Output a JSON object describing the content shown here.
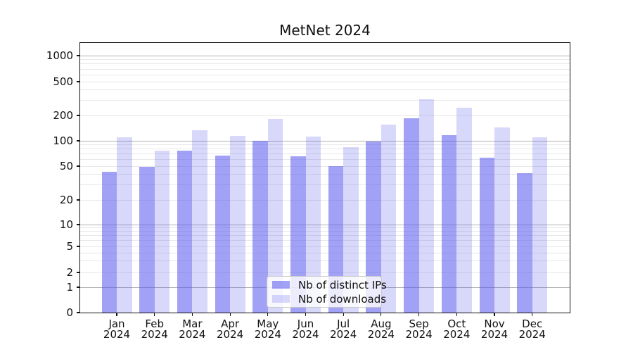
{
  "chart_data": {
    "type": "bar",
    "title": "MetNet 2024",
    "categories": [
      "Jan 2024",
      "Feb 2024",
      "Mar 2024",
      "Apr 2024",
      "May 2024",
      "Jun 2024",
      "Jul 2024",
      "Aug 2024",
      "Sep 2024",
      "Oct 2024",
      "Nov 2024",
      "Dec 2024"
    ],
    "series": [
      {
        "name": "Nb of distinct IPs",
        "values": [
          43,
          49,
          77,
          67,
          100,
          65,
          50,
          99,
          184,
          117,
          63,
          41
        ],
        "color": "rgba(88,88,238,0.56)",
        "approx_hex": "#a8a8f4"
      },
      {
        "name": "Nb of downloads",
        "values": [
          110,
          76,
          134,
          114,
          183,
          112,
          84,
          157,
          310,
          248,
          143,
          110
        ],
        "color": "rgba(88,88,238,0.23)",
        "approx_hex": "#d8d8f8"
      }
    ],
    "yscale": "symlog",
    "yticks": [
      0,
      1,
      2,
      5,
      10,
      20,
      50,
      100,
      200,
      500,
      1000
    ],
    "major_grid_values": [
      1,
      10,
      100,
      1000
    ],
    "grid": "both",
    "legend_position": "lower center",
    "xlabel": "",
    "ylabel": ""
  },
  "colors": {
    "major_grid": "#b0b0b0",
    "minor_grid": "#e8e8e8",
    "spine": "#111111",
    "text": "#111111",
    "background": "#ffffff"
  }
}
